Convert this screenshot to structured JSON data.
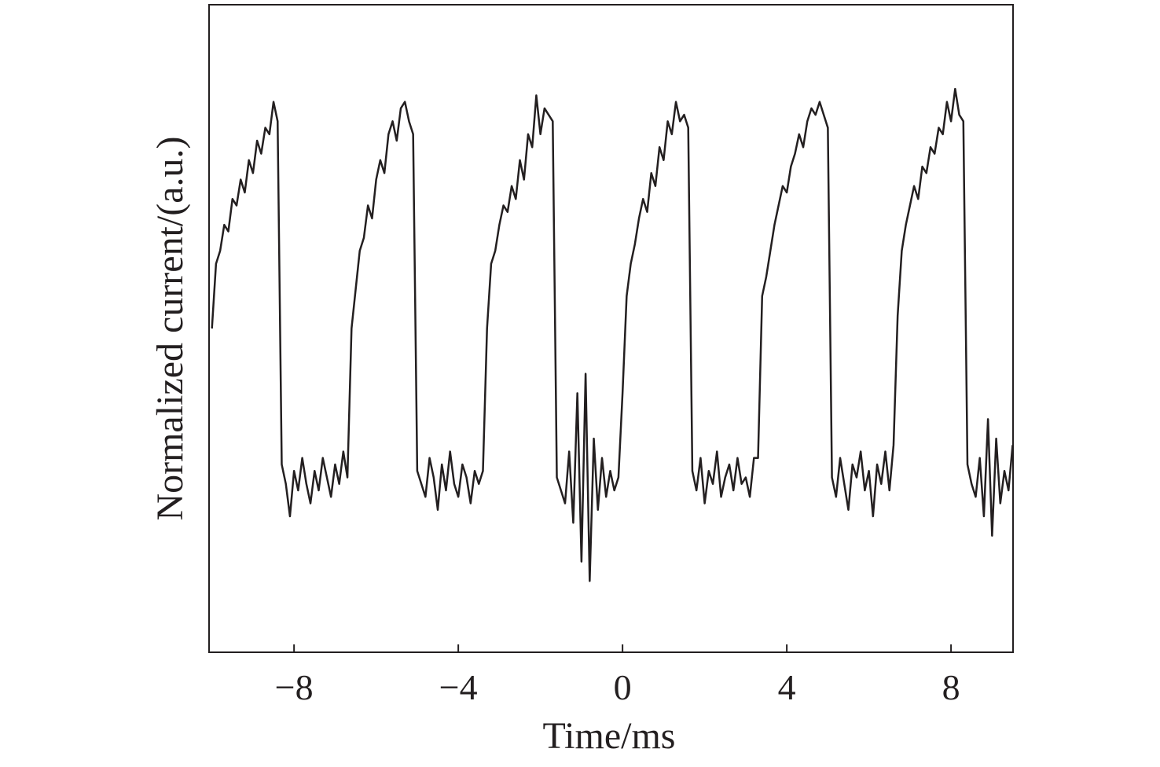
{
  "chart_data": {
    "type": "line",
    "x_label": "Time/ms",
    "y_label": "Normalized current/(a.u.)",
    "xlim": [
      -10.07,
      9.51
    ],
    "ylim": [
      0,
      1
    ],
    "xticks": [
      {
        "value": -8,
        "label": "−8"
      },
      {
        "value": -4,
        "label": "−4"
      },
      0,
      4,
      8
    ],
    "color": "#231f20",
    "x": [
      -10.0,
      -9.9,
      -9.8,
      -9.7,
      -9.6,
      -9.5,
      -9.4,
      -9.3,
      -9.2,
      -9.1,
      -9.0,
      -8.9,
      -8.8,
      -8.7,
      -8.6,
      -8.5,
      -8.4,
      -8.3,
      -8.2,
      -8.1,
      -8.0,
      -7.9,
      -7.8,
      -7.7,
      -7.6,
      -7.5,
      -7.4,
      -7.3,
      -7.2,
      -7.1,
      -7.0,
      -6.9,
      -6.8,
      -6.7,
      -6.6,
      -6.5,
      -6.4,
      -6.3,
      -6.2,
      -6.1,
      -6.0,
      -5.9,
      -5.8,
      -5.7,
      -5.6,
      -5.5,
      -5.4,
      -5.3,
      -5.2,
      -5.1,
      -5.0,
      -4.9,
      -4.8,
      -4.7,
      -4.6,
      -4.5,
      -4.4,
      -4.3,
      -4.2,
      -4.1,
      -4.0,
      -3.9,
      -3.8,
      -3.7,
      -3.6,
      -3.5,
      -3.4,
      -3.3,
      -3.2,
      -3.1,
      -3.0,
      -2.9,
      -2.8,
      -2.7,
      -2.6,
      -2.5,
      -2.4,
      -2.3,
      -2.2,
      -2.1,
      -2.0,
      -1.9,
      -1.8,
      -1.7,
      -1.6,
      -1.5,
      -1.4,
      -1.3,
      -1.2,
      -1.1,
      -1.0,
      -0.9,
      -0.8,
      -0.7,
      -0.6,
      -0.5,
      -0.4,
      -0.3,
      -0.2,
      -0.1,
      0.0,
      0.1,
      0.2,
      0.3,
      0.4,
      0.5,
      0.6,
      0.7,
      0.8,
      0.9,
      1.0,
      1.1,
      1.2,
      1.3,
      1.4,
      1.5,
      1.6,
      1.7,
      1.8,
      1.9,
      2.0,
      2.1,
      2.2,
      2.3,
      2.4,
      2.5,
      2.6,
      2.7,
      2.8,
      2.9,
      3.0,
      3.1,
      3.2,
      3.3,
      3.4,
      3.5,
      3.6,
      3.7,
      3.8,
      3.9,
      4.0,
      4.1,
      4.2,
      4.3,
      4.4,
      4.5,
      4.6,
      4.7,
      4.8,
      4.9,
      5.0,
      5.1,
      5.2,
      5.3,
      5.4,
      5.5,
      5.6,
      5.7,
      5.8,
      5.9,
      6.0,
      6.1,
      6.2,
      6.3,
      6.4,
      6.5,
      6.6,
      6.7,
      6.8,
      6.9,
      7.0,
      7.1,
      7.2,
      7.3,
      7.4,
      7.5,
      7.6,
      7.7,
      7.8,
      7.9,
      8.0,
      8.1,
      8.2,
      8.3,
      8.4,
      8.5,
      8.6,
      8.7,
      8.8,
      8.9,
      9.0,
      9.1,
      9.2,
      9.3,
      9.4,
      9.5
    ],
    "values": [
      0.5,
      0.6,
      0.62,
      0.66,
      0.65,
      0.7,
      0.69,
      0.73,
      0.71,
      0.76,
      0.74,
      0.79,
      0.77,
      0.81,
      0.8,
      0.85,
      0.82,
      0.29,
      0.26,
      0.21,
      0.28,
      0.25,
      0.3,
      0.26,
      0.23,
      0.28,
      0.25,
      0.3,
      0.27,
      0.24,
      0.29,
      0.26,
      0.31,
      0.27,
      0.5,
      0.56,
      0.62,
      0.64,
      0.69,
      0.67,
      0.73,
      0.76,
      0.74,
      0.8,
      0.82,
      0.79,
      0.84,
      0.85,
      0.82,
      0.8,
      0.28,
      0.26,
      0.24,
      0.3,
      0.27,
      0.22,
      0.29,
      0.25,
      0.31,
      0.26,
      0.24,
      0.29,
      0.27,
      0.23,
      0.28,
      0.26,
      0.28,
      0.5,
      0.6,
      0.62,
      0.66,
      0.69,
      0.68,
      0.72,
      0.7,
      0.76,
      0.73,
      0.8,
      0.78,
      0.86,
      0.8,
      0.84,
      0.83,
      0.82,
      0.27,
      0.25,
      0.23,
      0.31,
      0.2,
      0.4,
      0.14,
      0.43,
      0.11,
      0.33,
      0.22,
      0.3,
      0.24,
      0.28,
      0.25,
      0.27,
      0.4,
      0.55,
      0.6,
      0.63,
      0.67,
      0.7,
      0.68,
      0.74,
      0.72,
      0.78,
      0.76,
      0.82,
      0.8,
      0.85,
      0.82,
      0.83,
      0.81,
      0.28,
      0.25,
      0.3,
      0.23,
      0.28,
      0.26,
      0.31,
      0.24,
      0.27,
      0.29,
      0.25,
      0.3,
      0.26,
      0.27,
      0.24,
      0.3,
      0.3,
      0.55,
      0.58,
      0.62,
      0.66,
      0.69,
      0.72,
      0.71,
      0.75,
      0.77,
      0.8,
      0.78,
      0.82,
      0.84,
      0.83,
      0.85,
      0.83,
      0.81,
      0.27,
      0.24,
      0.3,
      0.26,
      0.22,
      0.29,
      0.27,
      0.31,
      0.25,
      0.28,
      0.21,
      0.29,
      0.26,
      0.31,
      0.25,
      0.32,
      0.52,
      0.62,
      0.66,
      0.69,
      0.72,
      0.7,
      0.75,
      0.74,
      0.78,
      0.77,
      0.81,
      0.8,
      0.85,
      0.82,
      0.87,
      0.83,
      0.82,
      0.29,
      0.26,
      0.24,
      0.3,
      0.21,
      0.36,
      0.18,
      0.33,
      0.23,
      0.28,
      0.25,
      0.32
    ]
  }
}
